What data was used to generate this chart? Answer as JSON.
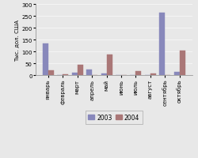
{
  "months": [
    "январь",
    "февраль",
    "март",
    "апрель",
    "май",
    "июнь",
    "июль",
    "август",
    "сентябрь",
    "октябрь"
  ],
  "values_2003": [
    135,
    0,
    12,
    25,
    8,
    0,
    3,
    0,
    263,
    15
  ],
  "values_2004": [
    22,
    6,
    45,
    0,
    88,
    0,
    18,
    9,
    0,
    105
  ],
  "color_2003": "#8888bb",
  "color_2004": "#aa7777",
  "ylabel": "Тыс. дол. США",
  "ylim": [
    0,
    300
  ],
  "yticks": [
    0,
    50,
    100,
    150,
    200,
    250,
    300
  ],
  "legend_2003": "2003",
  "legend_2004": "2004",
  "bg_color": "#e8e8e8"
}
